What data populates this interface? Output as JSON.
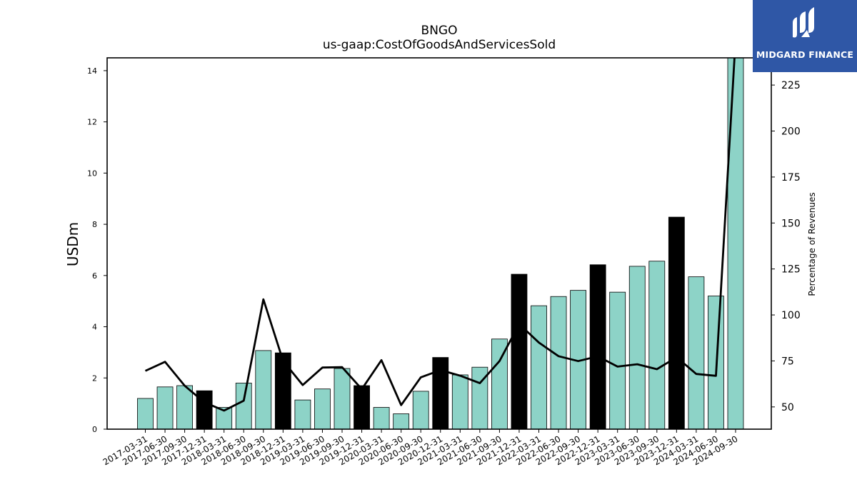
{
  "title": "BNGO",
  "subtitle": "us-gaap:CostOfGoodsAndServicesSold",
  "logo": {
    "text": "MIDGARD FINANCE",
    "icon": "midgard-logo-icon"
  },
  "colors": {
    "bar": "#8dd3c7",
    "bar_q4": "#000000",
    "line": "#000000",
    "logo_bg": "#2f57a6"
  },
  "chart_data": {
    "type": "bar",
    "categories": [
      "2017-03-31",
      "2017-06-30",
      "2017-09-30",
      "2017-12-31",
      "2018-03-31",
      "2018-06-30",
      "2018-09-30",
      "2018-12-31",
      "2019-03-31",
      "2019-06-30",
      "2019-09-30",
      "2019-12-31",
      "2020-03-31",
      "2020-06-30",
      "2020-09-30",
      "2020-12-31",
      "2021-03-31",
      "2021-06-30",
      "2021-09-30",
      "2021-12-31",
      "2022-03-31",
      "2022-06-30",
      "2022-09-30",
      "2022-12-31",
      "2023-03-31",
      "2023-06-30",
      "2023-09-30",
      "2023-12-31",
      "2024-03-31",
      "2024-06-30",
      "2024-09-30"
    ],
    "series": [
      {
        "values": [
          1.2,
          1.65,
          1.7,
          1.5,
          0.85,
          1.8,
          3.07,
          2.98,
          1.14,
          1.57,
          2.37,
          1.7,
          0.85,
          0.6,
          1.48,
          2.8,
          2.12,
          2.42,
          3.52,
          6.05,
          4.82,
          5.18,
          5.42,
          6.42,
          5.35,
          6.36,
          6.56,
          8.28,
          5.95,
          5.2,
          14.6
        ]
      },
      {
        "values": [
          69.6,
          74.5,
          61.5,
          52.5,
          48.0,
          53.4,
          108.5,
          75.0,
          61.9,
          71.4,
          71.6,
          59.7,
          75.4,
          51.0,
          66.1,
          70.0,
          67.0,
          62.9,
          74.9,
          95.0,
          85.0,
          77.6,
          74.9,
          77.5,
          71.9,
          73.2,
          70.5,
          77.0,
          67.9,
          66.9,
          250.0
        ]
      }
    ],
    "highlight_quarter": "12-31",
    "ylabel": "USDm",
    "y2label": "Percentage of Revenues",
    "ylim": [
      0,
      14.5
    ],
    "y2lim": [
      37.9,
      239.8
    ],
    "yticks": [
      0,
      2,
      4,
      6,
      8,
      10,
      12,
      14
    ],
    "y2ticks": [
      50,
      75,
      100,
      125,
      150,
      175,
      200,
      225
    ],
    "grid": false,
    "legend": "none"
  }
}
